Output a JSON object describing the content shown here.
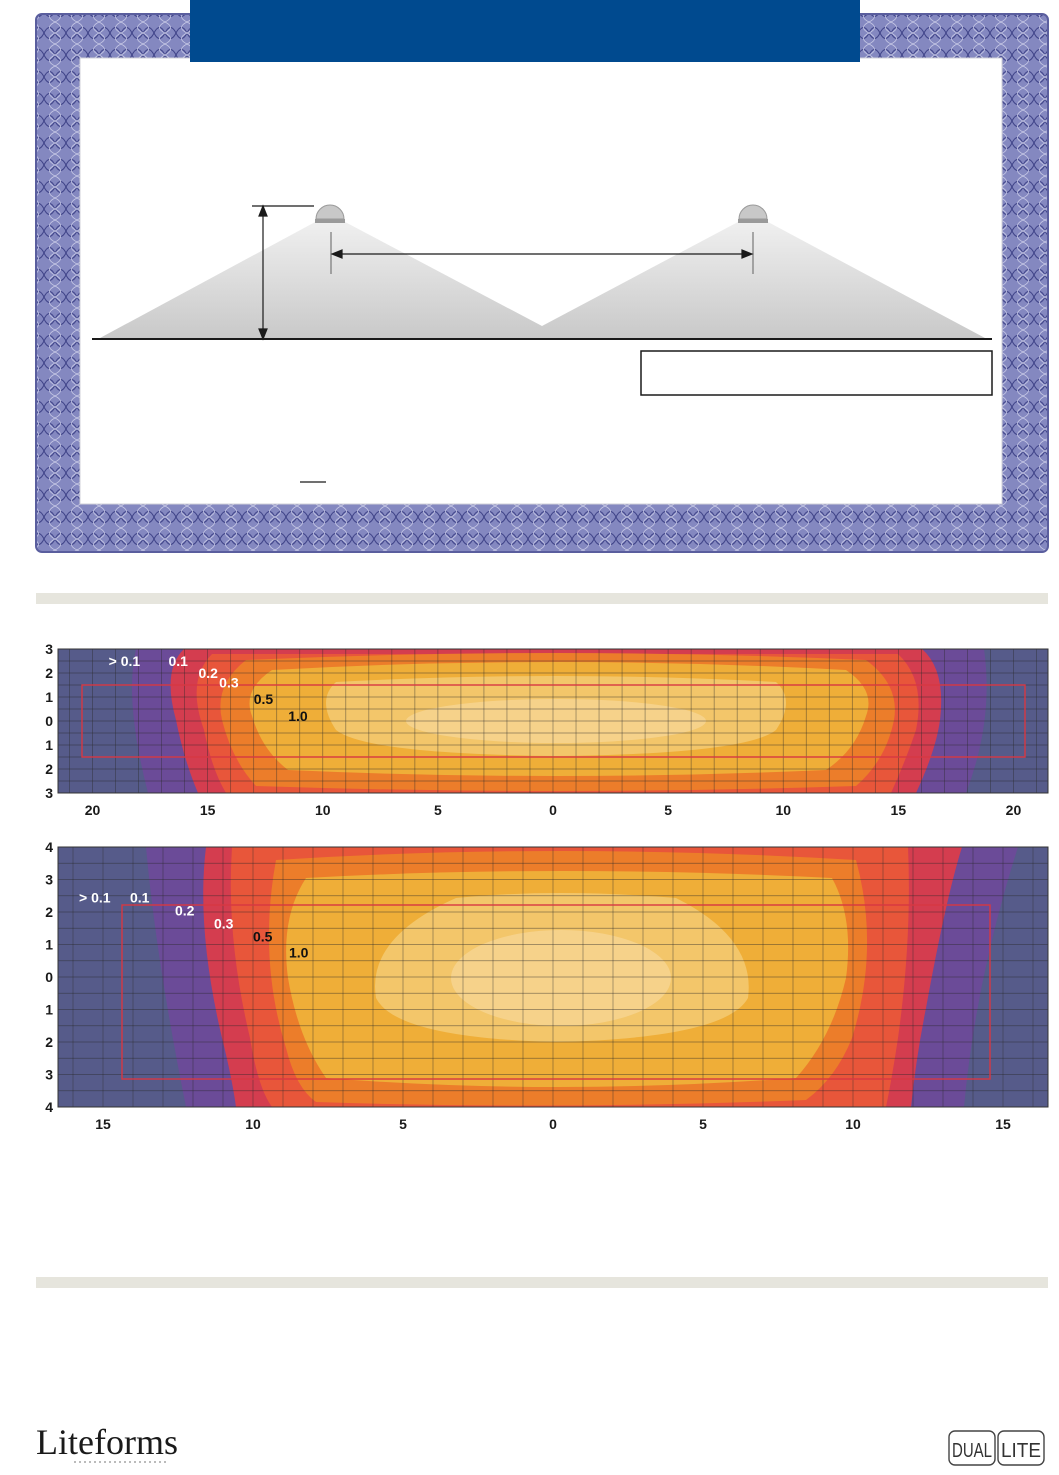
{
  "colors": {
    "header_bar": "#004a8f",
    "border_band": "#6f72b2",
    "rule": "#e6e5dd",
    "contour_outer": "#565b8a",
    "contour_01": "#6b4b98",
    "contour_02": "#d43d4f",
    "contour_03": "#e8563a",
    "contour_05": "#ec7d2a",
    "contour_10": "#efae38",
    "contour_core": "#f6d592"
  },
  "logos": {
    "liteforms": "Liteforms",
    "dual_lite": [
      "DUAL",
      "LITE"
    ]
  },
  "chart_data": [
    {
      "type": "heatmap",
      "x_ticks": [
        20,
        15,
        10,
        5,
        0,
        5,
        10,
        15,
        20
      ],
      "y_ticks": [
        3,
        2,
        1,
        0,
        1,
        2,
        3
      ],
      "xlim": [
        -21.5,
        21.5
      ],
      "ylim": [
        -3,
        3
      ],
      "contour_labels": [
        {
          "text": "> 0.1",
          "x": -19.3,
          "y": 2.3
        },
        {
          "text": "0.1",
          "x": -16.7,
          "y": 2.3
        },
        {
          "text": "0.2",
          "x": -15.4,
          "y": 1.8
        },
        {
          "text": "0.3",
          "x": -14.5,
          "y": 1.4
        },
        {
          "text": "0.5",
          "x": -13.0,
          "y": 0.7
        },
        {
          "text": "1.0",
          "x": -11.5,
          "y": 0.0
        }
      ]
    },
    {
      "type": "heatmap",
      "x_ticks": [
        15,
        10,
        5,
        0,
        5,
        10,
        15
      ],
      "y_ticks": [
        4,
        3,
        2,
        1,
        0,
        1,
        2,
        3,
        4
      ],
      "xlim": [
        -16.5,
        16.5
      ],
      "ylim": [
        -4,
        4
      ],
      "contour_labels": [
        {
          "text": "> 0.1",
          "x": -15.8,
          "y": 2.3
        },
        {
          "text": "0.1",
          "x": -14.1,
          "y": 2.3
        },
        {
          "text": "0.2",
          "x": -12.6,
          "y": 1.9
        },
        {
          "text": "0.3",
          "x": -11.3,
          "y": 1.5
        },
        {
          "text": "0.5",
          "x": -10.0,
          "y": 1.1
        },
        {
          "text": "1.0",
          "x": -8.8,
          "y": 0.6
        }
      ]
    }
  ]
}
